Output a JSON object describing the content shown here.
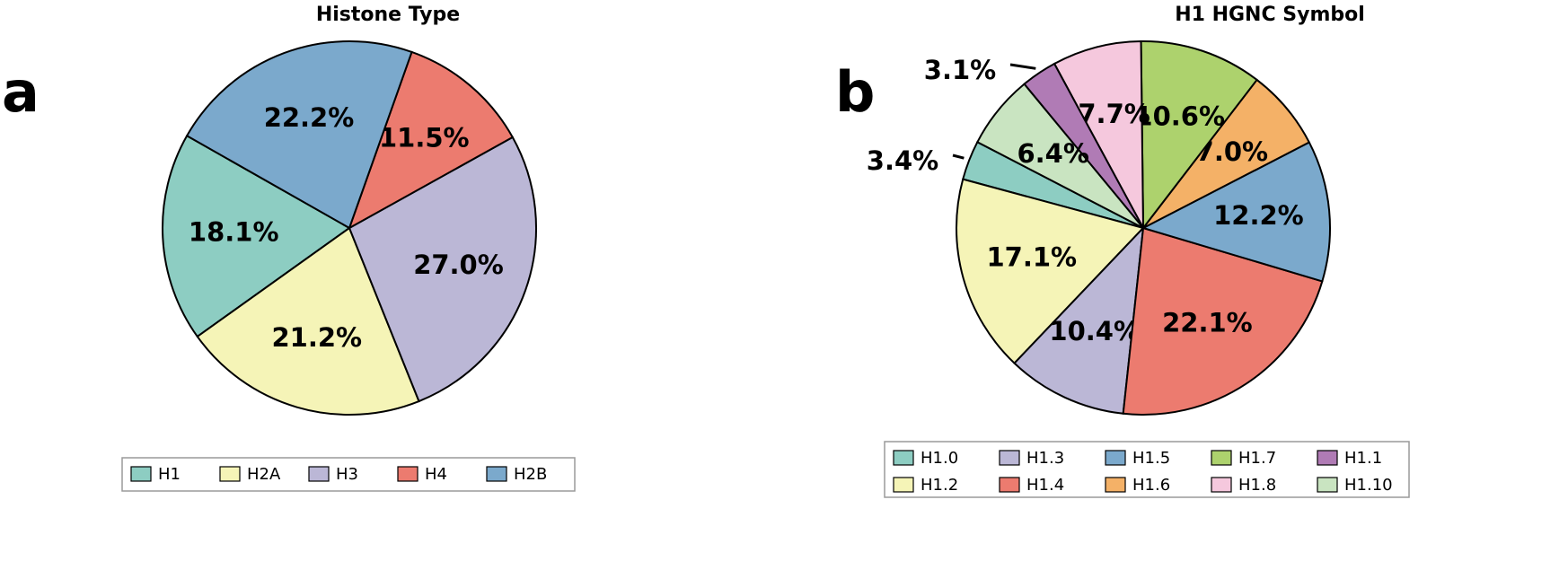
{
  "chart_data": [
    {
      "type": "pie",
      "panel": "a",
      "title": "Histone Type",
      "categories": [
        "H1",
        "H2A",
        "H3",
        "H4",
        "H2B"
      ],
      "values": [
        18.1,
        21.2,
        27.0,
        11.5,
        22.2
      ],
      "labels": [
        "18.1%",
        "21.2%",
        "27.0%",
        "11.5%",
        "22.2%"
      ],
      "colors": [
        "#8dcdc2",
        "#f5f4b7",
        "#bbb7d6",
        "#ec7b6f",
        "#7ba9cc"
      ],
      "legend": {
        "placement": "bottom",
        "entries": [
          "H1",
          "H2A",
          "H3",
          "H4",
          "H2B"
        ]
      }
    },
    {
      "type": "pie",
      "panel": "b",
      "title": "H1 HGNC Symbol",
      "categories": [
        "H1.0",
        "H1.2",
        "H1.3",
        "H1.4",
        "H1.5",
        "H1.6",
        "H1.7",
        "H1.8",
        "H1.1",
        "H1.10"
      ],
      "values": [
        3.4,
        17.1,
        10.4,
        22.1,
        12.2,
        7.0,
        10.6,
        7.7,
        3.1,
        6.4
      ],
      "labels": [
        "3.4%",
        "17.1%",
        "10.4%",
        "22.1%",
        "12.2%",
        "7.0%",
        "10.6%",
        "7.7%",
        "3.1%",
        "6.4%"
      ],
      "colors": [
        "#8dcdc2",
        "#f5f4b7",
        "#bbb7d6",
        "#ec7b6f",
        "#7ba9cc",
        "#f4b167",
        "#add26d",
        "#f5c8dd",
        "#b07bb5",
        "#c9e4c1"
      ],
      "legend": {
        "placement": "bottom",
        "entries": [
          "H1.0",
          "H1.3",
          "H1.5",
          "H1.7",
          "H1.1",
          "H1.2",
          "H1.4",
          "H1.6",
          "H1.8",
          "H1.10"
        ]
      }
    }
  ]
}
